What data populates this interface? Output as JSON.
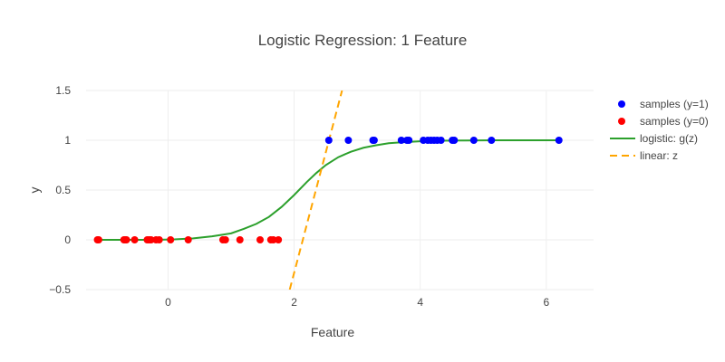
{
  "chart_data": {
    "type": "scatter",
    "title": "Logistic Regression: 1 Feature",
    "xlabel": "Feature",
    "ylabel": "y",
    "xlim": [
      -1.3,
      6.75
    ],
    "ylim": [
      -0.5,
      1.5
    ],
    "x_ticks": [
      0,
      2,
      4,
      6
    ],
    "x_tick_labels": [
      "0",
      "2",
      "4",
      "6"
    ],
    "y_ticks": [
      -0.5,
      0,
      0.5,
      1,
      1.5
    ],
    "y_tick_labels": [
      "−0.5",
      "0",
      "0.5",
      "1",
      "1.5"
    ],
    "grid": true,
    "legend_position": "top-right",
    "series": [
      {
        "name": "samples (y=1)",
        "kind": "markers",
        "color": "#0000ff",
        "x": [
          2.55,
          2.86,
          3.25,
          3.27,
          3.7,
          3.79,
          3.82,
          4.05,
          4.12,
          4.17,
          4.22,
          4.27,
          4.33,
          4.51,
          4.54,
          4.85,
          5.13,
          6.2
        ],
        "y": [
          1,
          1,
          1,
          1,
          1,
          1,
          1,
          1,
          1,
          1,
          1,
          1,
          1,
          1,
          1,
          1,
          1,
          1
        ]
      },
      {
        "name": "samples (y=0)",
        "kind": "markers",
        "color": "#ff0000",
        "x": [
          -1.12,
          -1.1,
          -0.7,
          -0.68,
          -0.66,
          -0.53,
          -0.33,
          -0.3,
          -0.27,
          -0.19,
          -0.14,
          0.04,
          0.32,
          0.87,
          0.91,
          1.14,
          1.46,
          1.63,
          1.67,
          1.75
        ],
        "y": [
          0,
          0,
          0,
          0,
          0,
          0,
          0,
          0,
          0,
          0,
          0,
          0,
          0,
          0,
          0,
          0,
          0,
          0,
          0,
          0
        ]
      },
      {
        "name": "logistic: g(z)",
        "kind": "line",
        "color": "#2ca02c",
        "x": [
          -1.12,
          -0.8,
          -0.5,
          -0.2,
          0.1,
          0.4,
          0.7,
          1.0,
          1.2,
          1.4,
          1.6,
          1.8,
          2.0,
          2.2,
          2.35,
          2.5,
          2.7,
          2.9,
          3.1,
          3.3,
          3.5,
          3.7,
          4.0,
          4.3,
          4.7,
          5.2,
          5.7,
          6.2
        ],
        "y": [
          0.0,
          0.0,
          0.0,
          0.0,
          0.005,
          0.015,
          0.035,
          0.065,
          0.11,
          0.16,
          0.23,
          0.33,
          0.45,
          0.58,
          0.67,
          0.75,
          0.83,
          0.885,
          0.925,
          0.95,
          0.97,
          0.98,
          0.99,
          0.995,
          0.998,
          1.0,
          1.0,
          1.0
        ]
      },
      {
        "name": "linear: z",
        "kind": "line",
        "dash": "dashed",
        "color": "#ffa500",
        "x": [
          1.93,
          2.76
        ],
        "y": [
          -0.5,
          1.5
        ]
      }
    ]
  }
}
